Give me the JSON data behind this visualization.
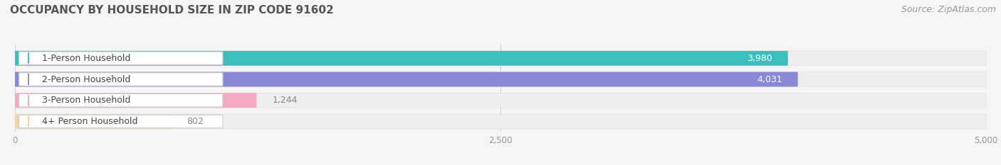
{
  "title": "OCCUPANCY BY HOUSEHOLD SIZE IN ZIP CODE 91602",
  "source": "Source: ZipAtlas.com",
  "categories": [
    "1-Person Household",
    "2-Person Household",
    "3-Person Household",
    "4+ Person Household"
  ],
  "values": [
    3980,
    4031,
    1244,
    802
  ],
  "bar_colors": [
    "#3dbebe",
    "#8888d8",
    "#f4a8c4",
    "#f5d5a8"
  ],
  "bar_bg_colors": [
    "#eaf8f8",
    "#eaeaf8",
    "#fceaf2",
    "#fdf6ee"
  ],
  "xlim": [
    0,
    5000
  ],
  "xticks": [
    0,
    2500,
    5000
  ],
  "xtick_labels": [
    "0",
    "2,500",
    "5,000"
  ],
  "value_label_colors": [
    "#ffffff",
    "#ffffff",
    "#888888",
    "#888888"
  ],
  "title_fontsize": 11,
  "source_fontsize": 9,
  "label_fontsize": 9,
  "value_fontsize": 9,
  "background_color": "#f5f5f5",
  "bar_bg_full_color": "#eeeeee"
}
